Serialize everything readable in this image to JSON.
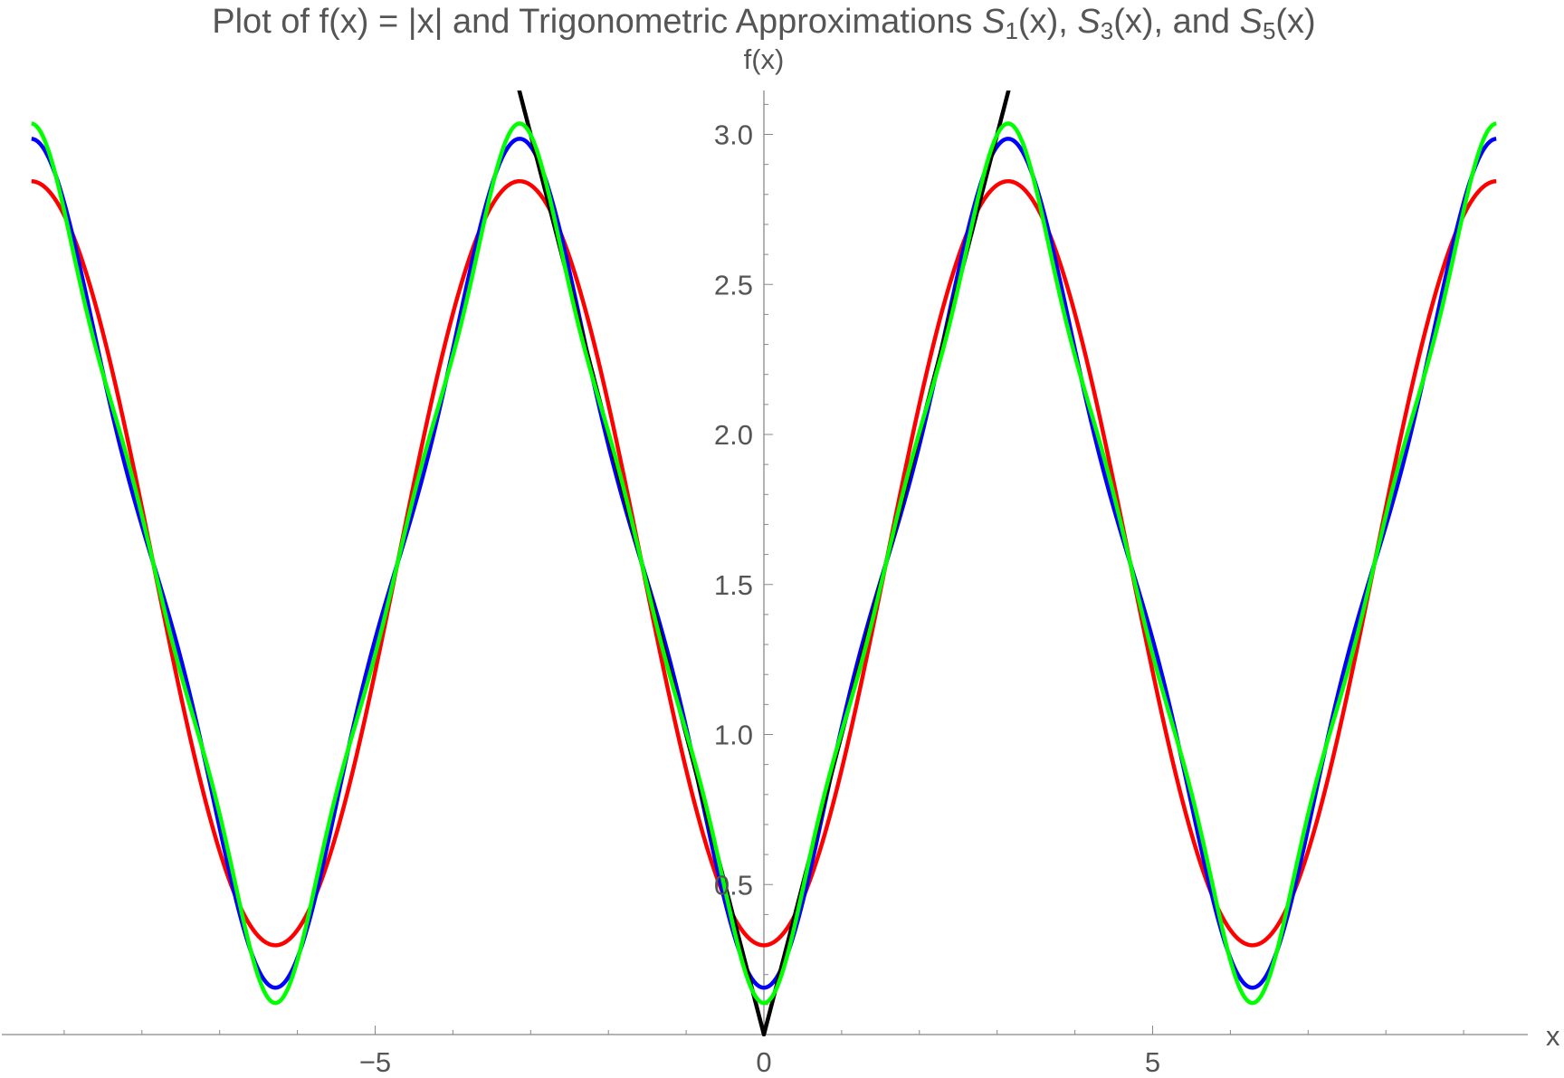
{
  "chart_data": {
    "type": "line",
    "title": {
      "prefix": "Plot of f(x) = |x| and Trigonometric Approximations ",
      "terms": [
        {
          "symbol": "S",
          "sub": "1",
          "after": "(x), "
        },
        {
          "symbol": "S",
          "sub": "3",
          "after": "(x),  and "
        },
        {
          "symbol": "S",
          "sub": "5",
          "after": "(x)"
        }
      ]
    },
    "xlabel": "x",
    "ylabel": "f(x)",
    "xlim": [
      -9.8,
      9.8
    ],
    "ylim": [
      0,
      3.14159
    ],
    "x_ticks": [
      {
        "value": -5,
        "label": "−5"
      },
      {
        "value": 0,
        "label": "0"
      },
      {
        "value": 5,
        "label": "5"
      }
    ],
    "x_minor_step": 1,
    "y_ticks": [
      {
        "value": 0.5,
        "label": "0.5"
      },
      {
        "value": 1.0,
        "label": "1.0"
      },
      {
        "value": 1.5,
        "label": "1.5"
      },
      {
        "value": 2.0,
        "label": "2.0"
      },
      {
        "value": 2.5,
        "label": "2.5"
      },
      {
        "value": 3.0,
        "label": "3.0"
      }
    ],
    "y_minor_step": 0.1,
    "grid": false,
    "series": [
      {
        "key": "f",
        "formula": "|x|",
        "color": "#000000",
        "points": [
          [
            -3.14,
            3.14
          ],
          [
            -2,
            2
          ],
          [
            -1,
            1
          ],
          [
            0,
            0
          ],
          [
            1,
            1
          ],
          [
            2,
            2
          ],
          [
            3.14,
            3.14
          ]
        ]
      },
      {
        "key": "S1",
        "formula": "pi/2 - (4/pi) cos x",
        "color": "#ff0000",
        "points": [
          [
            -9.42,
            2.844
          ],
          [
            -6.283,
            0.297
          ],
          [
            -3.14,
            2.844
          ],
          [
            0,
            0.297
          ],
          [
            3.14,
            2.844
          ],
          [
            6.283,
            0.297
          ],
          [
            9.42,
            2.844
          ]
        ]
      },
      {
        "key": "S3",
        "formula": "pi/2 - (4/pi)(cos x + cos 3x/9)",
        "color": "#0000ff",
        "points": [
          [
            -9.42,
            2.986
          ],
          [
            -6.283,
            0.156
          ],
          [
            -3.14,
            2.986
          ],
          [
            0,
            0.156
          ],
          [
            3.14,
            2.986
          ],
          [
            6.283,
            0.156
          ],
          [
            9.42,
            2.986
          ]
        ]
      },
      {
        "key": "S5",
        "formula": "pi/2 - (4/pi)(cos x + cos 3x/9 + cos 5x/25)",
        "color": "#00ff00",
        "points": [
          [
            -9.42,
            3.037
          ],
          [
            -6.283,
            0.105
          ],
          [
            -3.14,
            3.037
          ],
          [
            0,
            0.105
          ],
          [
            3.14,
            3.037
          ],
          [
            6.283,
            0.105
          ],
          [
            9.42,
            3.037
          ]
        ]
      }
    ]
  }
}
